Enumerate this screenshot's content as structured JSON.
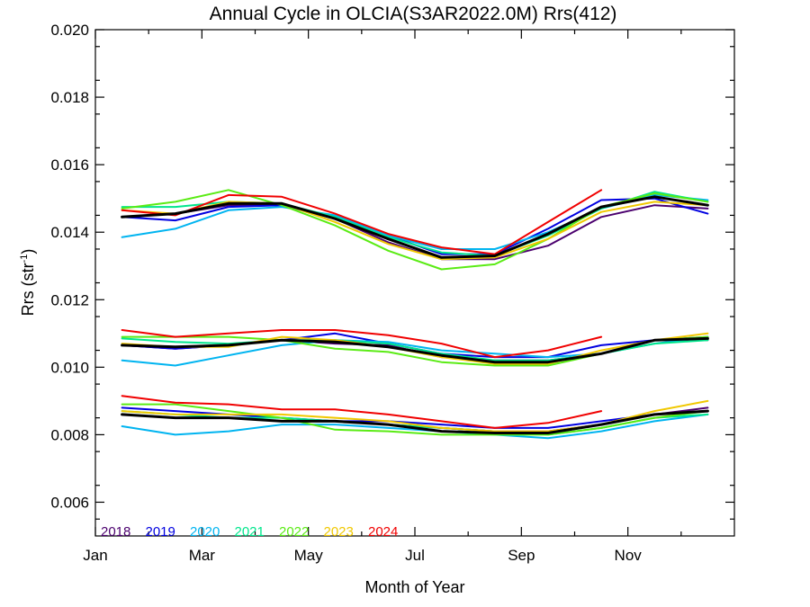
{
  "chart_data": {
    "type": "line",
    "title": "Annual Cycle in OLCIA(S3AR2022.0M) Rrs(412)",
    "xlabel": "Month of Year",
    "ylabel_main": "Rrs (str",
    "ylabel_sup": "-1",
    "ylabel_close": ")",
    "xlim": [
      1,
      13
    ],
    "ylim": [
      0.005,
      0.02
    ],
    "x_ticks": [
      {
        "value": 1,
        "label": "Jan"
      },
      {
        "value": 3,
        "label": "Mar"
      },
      {
        "value": 5,
        "label": "May"
      },
      {
        "value": 7,
        "label": "Jul"
      },
      {
        "value": 9,
        "label": "Sep"
      },
      {
        "value": 11,
        "label": "Nov"
      }
    ],
    "y_ticks": [
      {
        "value": 0.006,
        "label": "0.006"
      },
      {
        "value": 0.008,
        "label": "0.008"
      },
      {
        "value": 0.01,
        "label": "0.010"
      },
      {
        "value": 0.012,
        "label": "0.012"
      },
      {
        "value": 0.014,
        "label": "0.014"
      },
      {
        "value": 0.016,
        "label": "0.016"
      },
      {
        "value": 0.018,
        "label": "0.018"
      },
      {
        "value": 0.02,
        "label": "0.020"
      }
    ],
    "grid": false,
    "legend_placement": "bottom-left",
    "series": [
      {
        "name": "2018",
        "color": "#4b006e",
        "upper": [
          [
            1.5,
            0.01445
          ],
          [
            2.5,
            0.01455
          ],
          [
            3.5,
            0.0148
          ],
          [
            4.5,
            0.0148
          ],
          [
            5.5,
            0.0144
          ],
          [
            6.5,
            0.0137
          ],
          [
            7.5,
            0.0132
          ],
          [
            8.5,
            0.0132
          ],
          [
            9.5,
            0.0136
          ],
          [
            10.5,
            0.01445
          ],
          [
            11.5,
            0.0148
          ],
          [
            12.5,
            0.0147
          ]
        ],
        "middle": [
          [
            1.5,
            0.01065
          ],
          [
            2.5,
            0.01055
          ],
          [
            3.5,
            0.01065
          ],
          [
            4.5,
            0.0108
          ],
          [
            5.5,
            0.0107
          ],
          [
            6.5,
            0.01065
          ],
          [
            7.5,
            0.0103
          ],
          [
            8.5,
            0.0102
          ],
          [
            9.5,
            0.0102
          ],
          [
            10.5,
            0.0104
          ],
          [
            11.5,
            0.0108
          ],
          [
            12.5,
            0.0108
          ]
        ],
        "lower": [
          [
            1.5,
            0.0086
          ],
          [
            2.5,
            0.0085
          ],
          [
            3.5,
            0.0085
          ],
          [
            4.5,
            0.0084
          ],
          [
            5.5,
            0.0084
          ],
          [
            6.5,
            0.0083
          ],
          [
            7.5,
            0.0082
          ],
          [
            8.5,
            0.0081
          ],
          [
            9.5,
            0.0081
          ],
          [
            10.5,
            0.0083
          ],
          [
            11.5,
            0.0086
          ],
          [
            12.5,
            0.0088
          ]
        ]
      },
      {
        "name": "2019",
        "color": "#0000e0",
        "upper": [
          [
            1.5,
            0.01445
          ],
          [
            2.5,
            0.01435
          ],
          [
            3.5,
            0.01475
          ],
          [
            4.5,
            0.0148
          ],
          [
            5.5,
            0.01445
          ],
          [
            6.5,
            0.0139
          ],
          [
            7.5,
            0.01335
          ],
          [
            8.5,
            0.01335
          ],
          [
            9.5,
            0.0141
          ],
          [
            10.5,
            0.01495
          ],
          [
            11.5,
            0.015
          ],
          [
            12.5,
            0.01455
          ]
        ],
        "middle": [
          [
            1.5,
            0.01065
          ],
          [
            2.5,
            0.01055
          ],
          [
            3.5,
            0.01065
          ],
          [
            4.5,
            0.0108
          ],
          [
            5.5,
            0.011
          ],
          [
            6.5,
            0.0107
          ],
          [
            7.5,
            0.0104
          ],
          [
            8.5,
            0.0103
          ],
          [
            9.5,
            0.0103
          ],
          [
            10.5,
            0.01065
          ],
          [
            11.5,
            0.0108
          ],
          [
            12.5,
            0.0109
          ]
        ],
        "lower": [
          [
            1.5,
            0.0088
          ],
          [
            2.5,
            0.0087
          ],
          [
            3.5,
            0.0086
          ],
          [
            4.5,
            0.0085
          ],
          [
            5.5,
            0.0084
          ],
          [
            6.5,
            0.0084
          ],
          [
            7.5,
            0.0083
          ],
          [
            8.5,
            0.0082
          ],
          [
            9.5,
            0.0082
          ],
          [
            10.5,
            0.0084
          ],
          [
            11.5,
            0.0086
          ],
          [
            12.5,
            0.0087
          ]
        ]
      },
      {
        "name": "2020",
        "color": "#00b4f0",
        "upper": [
          [
            1.5,
            0.01385
          ],
          [
            2.5,
            0.0141
          ],
          [
            3.5,
            0.01465
          ],
          [
            4.5,
            0.01475
          ],
          [
            5.5,
            0.0145
          ],
          [
            6.5,
            0.0139
          ],
          [
            7.5,
            0.0135
          ],
          [
            8.5,
            0.0135
          ],
          [
            9.5,
            0.014
          ],
          [
            10.5,
            0.0147
          ],
          [
            11.5,
            0.0151
          ],
          [
            12.5,
            0.01495
          ]
        ],
        "middle": [
          [
            1.5,
            0.0102
          ],
          [
            2.5,
            0.01005
          ],
          [
            3.5,
            0.01035
          ],
          [
            4.5,
            0.01065
          ],
          [
            5.5,
            0.0108
          ],
          [
            6.5,
            0.01075
          ],
          [
            7.5,
            0.0105
          ],
          [
            8.5,
            0.0104
          ],
          [
            9.5,
            0.0103
          ],
          [
            10.5,
            0.0104
          ],
          [
            11.5,
            0.0107
          ],
          [
            12.5,
            0.0109
          ]
        ],
        "lower": [
          [
            1.5,
            0.00825
          ],
          [
            2.5,
            0.008
          ],
          [
            3.5,
            0.0081
          ],
          [
            4.5,
            0.0083
          ],
          [
            5.5,
            0.0083
          ],
          [
            6.5,
            0.0082
          ],
          [
            7.5,
            0.0081
          ],
          [
            8.5,
            0.008
          ],
          [
            9.5,
            0.0079
          ],
          [
            10.5,
            0.0081
          ],
          [
            11.5,
            0.0084
          ],
          [
            12.5,
            0.0086
          ]
        ]
      },
      {
        "name": "2021",
        "color": "#00e68c",
        "upper": [
          [
            1.5,
            0.01475
          ],
          [
            2.5,
            0.01475
          ],
          [
            3.5,
            0.0149
          ],
          [
            4.5,
            0.01485
          ],
          [
            5.5,
            0.01445
          ],
          [
            6.5,
            0.01385
          ],
          [
            7.5,
            0.0134
          ],
          [
            8.5,
            0.0133
          ],
          [
            9.5,
            0.0139
          ],
          [
            10.5,
            0.0147
          ],
          [
            11.5,
            0.0152
          ],
          [
            12.5,
            0.0149
          ]
        ],
        "middle": [
          [
            1.5,
            0.01085
          ],
          [
            2.5,
            0.01075
          ],
          [
            3.5,
            0.0107
          ],
          [
            4.5,
            0.0108
          ],
          [
            5.5,
            0.0108
          ],
          [
            6.5,
            0.0107
          ],
          [
            7.5,
            0.0104
          ],
          [
            8.5,
            0.0102
          ],
          [
            9.5,
            0.0102
          ],
          [
            10.5,
            0.0104
          ],
          [
            11.5,
            0.0107
          ],
          [
            12.5,
            0.0108
          ]
        ],
        "lower": [
          [
            1.5,
            0.0087
          ],
          [
            2.5,
            0.0086
          ],
          [
            3.5,
            0.0085
          ],
          [
            4.5,
            0.0085
          ],
          [
            5.5,
            0.0084
          ],
          [
            6.5,
            0.0083
          ],
          [
            7.5,
            0.0082
          ],
          [
            8.5,
            0.0081
          ],
          [
            9.5,
            0.008
          ],
          [
            10.5,
            0.0082
          ],
          [
            11.5,
            0.0085
          ],
          [
            12.5,
            0.0086
          ]
        ]
      },
      {
        "name": "2022",
        "color": "#5aeb14",
        "upper": [
          [
            1.5,
            0.0147
          ],
          [
            2.5,
            0.0149
          ],
          [
            3.5,
            0.01525
          ],
          [
            4.5,
            0.0148
          ],
          [
            5.5,
            0.0142
          ],
          [
            6.5,
            0.01345
          ],
          [
            7.5,
            0.0129
          ],
          [
            8.5,
            0.01305
          ],
          [
            9.5,
            0.0138
          ],
          [
            10.5,
            0.01475
          ],
          [
            11.5,
            0.01515
          ],
          [
            12.5,
            0.0149
          ]
        ],
        "middle": [
          [
            1.5,
            0.0109
          ],
          [
            2.5,
            0.0109
          ],
          [
            3.5,
            0.0109
          ],
          [
            4.5,
            0.0108
          ],
          [
            5.5,
            0.01055
          ],
          [
            6.5,
            0.01045
          ],
          [
            7.5,
            0.01015
          ],
          [
            8.5,
            0.01005
          ],
          [
            9.5,
            0.01005
          ],
          [
            10.5,
            0.0104
          ],
          [
            11.5,
            0.0108
          ],
          [
            12.5,
            0.0109
          ]
        ],
        "lower": [
          [
            1.5,
            0.0089
          ],
          [
            2.5,
            0.0089
          ],
          [
            3.5,
            0.0087
          ],
          [
            4.5,
            0.0085
          ],
          [
            5.5,
            0.00815
          ],
          [
            6.5,
            0.0081
          ],
          [
            7.5,
            0.008
          ],
          [
            8.5,
            0.008
          ],
          [
            9.5,
            0.008
          ],
          [
            10.5,
            0.0082
          ],
          [
            11.5,
            0.0085
          ],
          [
            12.5,
            0.0087
          ]
        ]
      },
      {
        "name": "2023",
        "color": "#f0c800",
        "upper": [
          [
            1.5,
            0.01465
          ],
          [
            2.5,
            0.01455
          ],
          [
            3.5,
            0.0149
          ],
          [
            4.5,
            0.01485
          ],
          [
            5.5,
            0.0143
          ],
          [
            6.5,
            0.01365
          ],
          [
            7.5,
            0.0132
          ],
          [
            8.5,
            0.01325
          ],
          [
            9.5,
            0.0138
          ],
          [
            10.5,
            0.0146
          ],
          [
            11.5,
            0.0149
          ],
          [
            12.5,
            0.0148
          ]
        ],
        "middle": [
          [
            1.5,
            0.0107
          ],
          [
            2.5,
            0.0106
          ],
          [
            3.5,
            0.0106
          ],
          [
            4.5,
            0.0109
          ],
          [
            5.5,
            0.0108
          ],
          [
            6.5,
            0.0106
          ],
          [
            7.5,
            0.0103
          ],
          [
            8.5,
            0.0101
          ],
          [
            9.5,
            0.0101
          ],
          [
            10.5,
            0.0105
          ],
          [
            11.5,
            0.0108
          ],
          [
            12.5,
            0.011
          ]
        ],
        "lower": [
          [
            1.5,
            0.0087
          ],
          [
            2.5,
            0.0086
          ],
          [
            3.5,
            0.0086
          ],
          [
            4.5,
            0.0086
          ],
          [
            5.5,
            0.0085
          ],
          [
            6.5,
            0.0084
          ],
          [
            7.5,
            0.0082
          ],
          [
            8.5,
            0.0081
          ],
          [
            9.5,
            0.0081
          ],
          [
            10.5,
            0.0083
          ],
          [
            11.5,
            0.0087
          ],
          [
            12.5,
            0.009
          ]
        ]
      },
      {
        "name": "2024",
        "color": "#f00000",
        "upper": [
          [
            1.5,
            0.01465
          ],
          [
            2.5,
            0.0145
          ],
          [
            3.5,
            0.0151
          ],
          [
            4.5,
            0.01505
          ],
          [
            5.5,
            0.01455
          ],
          [
            6.5,
            0.01395
          ],
          [
            7.5,
            0.01355
          ],
          [
            8.5,
            0.01335
          ],
          [
            9.5,
            0.0143
          ],
          [
            10.5,
            0.01525
          ]
        ],
        "middle": [
          [
            1.5,
            0.0111
          ],
          [
            2.5,
            0.0109
          ],
          [
            3.5,
            0.011
          ],
          [
            4.5,
            0.0111
          ],
          [
            5.5,
            0.0111
          ],
          [
            6.5,
            0.01095
          ],
          [
            7.5,
            0.0107
          ],
          [
            8.5,
            0.0103
          ],
          [
            9.5,
            0.0105
          ],
          [
            10.5,
            0.0109
          ]
        ],
        "lower": [
          [
            1.5,
            0.00915
          ],
          [
            2.5,
            0.00895
          ],
          [
            3.5,
            0.0089
          ],
          [
            4.5,
            0.00875
          ],
          [
            5.5,
            0.00875
          ],
          [
            6.5,
            0.0086
          ],
          [
            7.5,
            0.0084
          ],
          [
            8.5,
            0.0082
          ],
          [
            9.5,
            0.00835
          ],
          [
            10.5,
            0.0087
          ]
        ]
      }
    ],
    "mean": {
      "color": "#000000",
      "upper": [
        [
          1.5,
          0.01445
        ],
        [
          2.5,
          0.01455
        ],
        [
          3.5,
          0.01485
        ],
        [
          4.5,
          0.01485
        ],
        [
          5.5,
          0.0144
        ],
        [
          6.5,
          0.0138
        ],
        [
          7.5,
          0.01325
        ],
        [
          8.5,
          0.0133
        ],
        [
          9.5,
          0.01395
        ],
        [
          10.5,
          0.01475
        ],
        [
          11.5,
          0.01505
        ],
        [
          12.5,
          0.0148
        ]
      ],
      "middle": [
        [
          1.5,
          0.01065
        ],
        [
          2.5,
          0.0106
        ],
        [
          3.5,
          0.01065
        ],
        [
          4.5,
          0.0108
        ],
        [
          5.5,
          0.01075
        ],
        [
          6.5,
          0.0106
        ],
        [
          7.5,
          0.01035
        ],
        [
          8.5,
          0.01015
        ],
        [
          9.5,
          0.01015
        ],
        [
          10.5,
          0.0104
        ],
        [
          11.5,
          0.0108
        ],
        [
          12.5,
          0.01085
        ]
      ],
      "lower": [
        [
          1.5,
          0.0086
        ],
        [
          2.5,
          0.0085
        ],
        [
          3.5,
          0.0085
        ],
        [
          4.5,
          0.0084
        ],
        [
          5.5,
          0.0084
        ],
        [
          6.5,
          0.0083
        ],
        [
          7.5,
          0.0081
        ],
        [
          8.5,
          0.00805
        ],
        [
          9.5,
          0.00805
        ],
        [
          10.5,
          0.0083
        ],
        [
          11.5,
          0.0086
        ],
        [
          12.5,
          0.0087
        ]
      ]
    }
  }
}
